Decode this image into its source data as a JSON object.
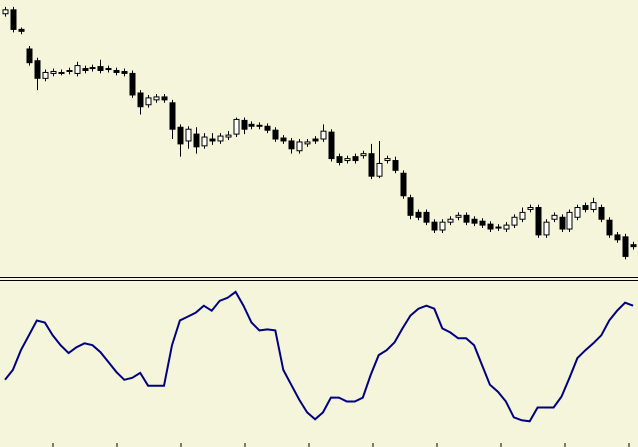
{
  "chart_data": [
    {
      "type": "candlestick",
      "up_color": "#ffffff",
      "down_color": "#000000",
      "ylim": [
        0,
        280
      ],
      "open": [
        268,
        272,
        252,
        232,
        220,
        202,
        207,
        208,
        209,
        207,
        212,
        212,
        214,
        212,
        210,
        209,
        207,
        187,
        175,
        180,
        183,
        177,
        152,
        138,
        145,
        133,
        140,
        138,
        142,
        145,
        159,
        155,
        154,
        153,
        149,
        141,
        138,
        128,
        135,
        140,
        140,
        147,
        122,
        118,
        122,
        123,
        125,
        102,
        118,
        118,
        105,
        80,
        65,
        65,
        55,
        47,
        55,
        60,
        62,
        58,
        56,
        53,
        50,
        48,
        52,
        58,
        68,
        70,
        42,
        58,
        60,
        48,
        60,
        72,
        68,
        70,
        57,
        42,
        40,
        32
      ],
      "close": [
        272,
        252,
        250,
        218,
        202,
        208,
        209,
        208,
        210,
        215,
        210,
        213,
        210,
        211,
        208,
        207,
        185,
        173,
        182,
        183,
        180,
        150,
        135,
        150,
        132,
        142,
        138,
        143,
        144,
        160,
        150,
        153,
        153,
        149,
        140,
        138,
        130,
        137,
        137,
        138,
        148,
        120,
        116,
        120,
        118,
        125,
        102,
        115,
        120,
        108,
        82,
        62,
        60,
        55,
        47,
        55,
        58,
        62,
        55,
        54,
        52,
        48,
        49,
        52,
        60,
        65,
        70,
        42,
        55,
        62,
        48,
        65,
        70,
        68,
        75,
        58,
        42,
        37,
        20,
        30
      ],
      "high": [
        275,
        275,
        254,
        235,
        223,
        211,
        212,
        211,
        213,
        219,
        215,
        216,
        221,
        215,
        213,
        212,
        210,
        190,
        185,
        186,
        186,
        180,
        155,
        153,
        152,
        146,
        146,
        146,
        148,
        162,
        162,
        158,
        157,
        156,
        152,
        144,
        141,
        140,
        140,
        143,
        155,
        150,
        125,
        123,
        125,
        128,
        135,
        138,
        123,
        122,
        108,
        83,
        68,
        68,
        58,
        58,
        61,
        65,
        65,
        61,
        59,
        56,
        53,
        55,
        63,
        70,
        73,
        73,
        58,
        65,
        63,
        68,
        73,
        75,
        80,
        73,
        60,
        45,
        43,
        35
      ],
      "low": [
        265,
        249,
        247,
        215,
        190,
        199,
        204,
        205,
        206,
        204,
        207,
        209,
        207,
        208,
        205,
        204,
        182,
        165,
        172,
        177,
        177,
        140,
        122,
        130,
        125,
        130,
        134,
        135,
        139,
        142,
        145,
        150,
        150,
        146,
        137,
        135,
        125,
        125,
        132,
        135,
        137,
        117,
        113,
        115,
        115,
        120,
        99,
        100,
        115,
        105,
        79,
        58,
        57,
        52,
        44,
        44,
        52,
        57,
        52,
        51,
        49,
        45,
        46,
        45,
        49,
        55,
        65,
        39,
        39,
        55,
        45,
        45,
        57,
        65,
        65,
        55,
        39,
        34,
        17,
        27
      ]
    },
    {
      "type": "line",
      "color": "#000080",
      "ylim": [
        0,
        166
      ],
      "values": [
        67,
        77,
        97,
        112,
        127,
        125,
        112,
        102,
        94,
        100,
        104,
        102,
        95,
        85,
        75,
        67,
        69,
        74,
        61,
        61,
        61,
        102,
        127,
        131,
        135,
        142,
        137,
        147,
        150,
        156,
        142,
        125,
        117,
        118,
        117,
        77,
        62,
        47,
        34,
        27,
        34,
        49,
        49,
        45,
        45,
        49,
        72,
        92,
        97,
        105,
        119,
        132,
        139,
        142,
        139,
        119,
        115,
        109,
        109,
        102,
        82,
        62,
        55,
        45,
        29,
        26,
        25,
        39,
        39,
        39,
        50,
        69,
        89,
        97,
        104,
        112,
        127,
        137,
        145,
        142
      ]
    }
  ]
}
